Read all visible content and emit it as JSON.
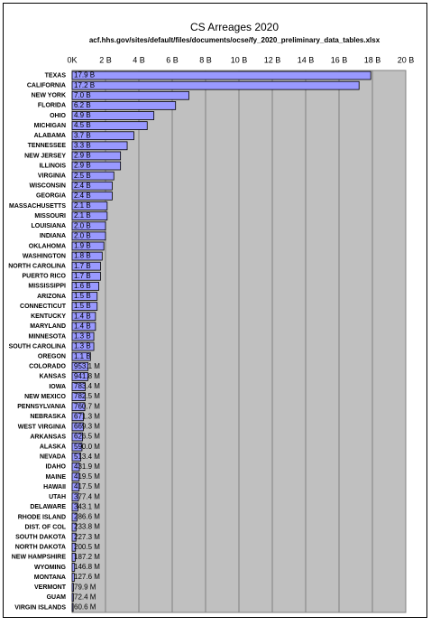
{
  "chart_data": {
    "type": "hbar",
    "title": "CS Arreages 2020",
    "subtitle": "acf.hhs.gov/sites/default/files/documents/ocse/fy_2020_preliminary_data_tables.xlsx",
    "categories": [
      "TEXAS",
      "CALIFORNIA",
      "NEW YORK",
      "FLORIDA",
      "OHIO",
      "MICHIGAN",
      "ALABAMA",
      "TENNESSEE",
      "NEW JERSEY",
      "ILLINOIS",
      "VIRGINIA",
      "WISCONSIN",
      "GEORGIA",
      "MASSACHUSETTS",
      "MISSOURI",
      "LOUISIANA",
      "INDIANA",
      "OKLAHOMA",
      "WASHINGTON",
      "NORTH CAROLINA",
      "PUERTO RICO",
      "MISSISSIPPI",
      "ARIZONA",
      "CONNECTICUT",
      "KENTUCKY",
      "MARYLAND",
      "MINNESOTA",
      "SOUTH CAROLINA",
      "OREGON",
      "COLORADO",
      "KANSAS",
      "IOWA",
      "NEW MEXICO",
      "PENNSYLVANIA",
      "NEBRASKA",
      "WEST VIRGINIA",
      "ARKANSAS",
      "ALASKA",
      "NEVADA",
      "IDAHO",
      "MAINE",
      "HAWAII",
      "UTAH",
      "DELAWARE",
      "RHODE ISLAND",
      "DIST. OF COL",
      "SOUTH DAKOTA",
      "NORTH DAKOTA",
      "NEW HAMPSHIRE",
      "WYOMING",
      "MONTANA",
      "VERMONT",
      "GUAM",
      "VIRGIN ISLANDS"
    ],
    "values": [
      17.9,
      17.2,
      7.0,
      6.2,
      4.9,
      4.5,
      3.7,
      3.3,
      2.9,
      2.9,
      2.5,
      2.4,
      2.4,
      2.1,
      2.1,
      2.0,
      2.0,
      1.9,
      1.8,
      1.7,
      1.7,
      1.6,
      1.5,
      1.5,
      1.4,
      1.4,
      1.3,
      1.3,
      1.1,
      0.9531,
      0.9418,
      0.7834,
      0.7825,
      0.7607,
      0.6713,
      0.6693,
      0.6265,
      0.59,
      0.5134,
      0.4319,
      0.4195,
      0.4175,
      0.3774,
      0.3431,
      0.2866,
      0.2338,
      0.2273,
      0.2005,
      0.1872,
      0.1468,
      0.1276,
      0.0799,
      0.0724,
      0.0606
    ],
    "value_labels": [
      "17.9 B",
      "17.2 B",
      "7.0 B",
      "6.2 B",
      "4.9 B",
      "4.5 B",
      "3.7 B",
      "3.3 B",
      "2.9 B",
      "2.9 B",
      "2.5 B",
      "2.4 B",
      "2.4 B",
      "2.1 B",
      "2.1 B",
      "2.0 B",
      "2.0 B",
      "1.9 B",
      "1.8 B",
      "1.7 B",
      "1.7 B",
      "1.6 B",
      "1.5 B",
      "1.5 B",
      "1.4 B",
      "1.4 B",
      "1.3 B",
      "1.3 B",
      "1.1 B",
      "953.1 M",
      "941.8 M",
      "783.4 M",
      "782.5 M",
      "760.7 M",
      "671.3 M",
      "669.3 M",
      "626.5 M",
      "590.0 M",
      "513.4 M",
      "431.9 M",
      "419.5 M",
      "417.5 M",
      "377.4 M",
      "343.1 M",
      "286.6 M",
      "233.8 M",
      "227.3 M",
      "200.5 M",
      "187.2 M",
      "146.8 M",
      "127.6 M",
      "79.9 M",
      "72.4 M",
      "60.6 M"
    ],
    "color": "#9999ff",
    "xlim": [
      0,
      20
    ],
    "xticks": [
      {
        "value": 0,
        "label": "0K"
      },
      {
        "value": 2,
        "label": "2 B"
      },
      {
        "value": 4,
        "label": "4 B"
      },
      {
        "value": 6,
        "label": "6 B"
      },
      {
        "value": 8,
        "label": "8 B"
      },
      {
        "value": 10,
        "label": "10 B"
      },
      {
        "value": 12,
        "label": "12 B"
      },
      {
        "value": 14,
        "label": "14 B"
      },
      {
        "value": 16,
        "label": "16 B"
      },
      {
        "value": 18,
        "label": "18 B"
      },
      {
        "value": 20,
        "label": "20 B"
      }
    ],
    "grid": true
  }
}
